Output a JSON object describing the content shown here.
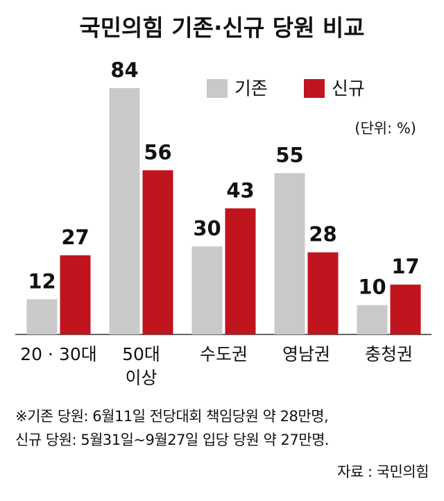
{
  "chart_data": {
    "type": "bar",
    "title": "국민의힘 기존·신규 당원 비교",
    "unit": "(단위: %)",
    "categories": [
      "20 · 30대",
      "50대\n이상",
      "수도권",
      "영남권",
      "충청권"
    ],
    "series": [
      {
        "name": "기존",
        "color": "#c9c9c9",
        "values": [
          12,
          84,
          30,
          55,
          10
        ]
      },
      {
        "name": "신규",
        "color": "#c0141e",
        "values": [
          27,
          56,
          43,
          28,
          17
        ]
      }
    ],
    "notes": [
      "※기존 당원: 6월11일 전당대회 책임당원 약 28만명,",
      "신규 당원: 5월31일~9월27일 입당 당원 약 27만명."
    ],
    "source": "자료 : 국민의힘"
  }
}
